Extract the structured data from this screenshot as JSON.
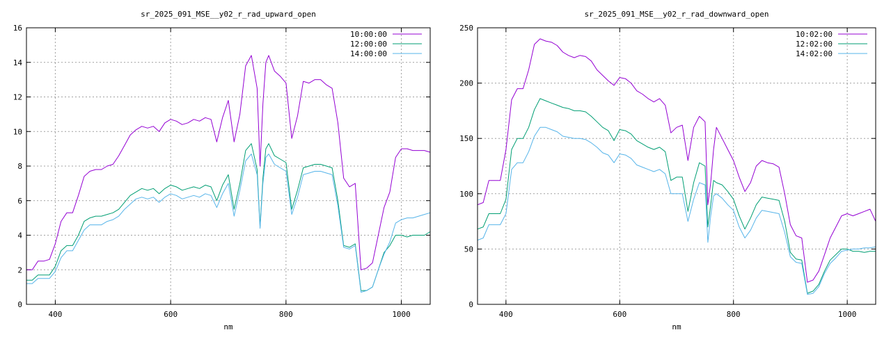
{
  "chart_data": [
    {
      "type": "line",
      "title": "sr_2025_091_MSE__y02_r_rad_upward_open",
      "xlabel": "nm",
      "ylabel": "",
      "xlim": [
        350,
        1050
      ],
      "ylim": [
        0,
        16
      ],
      "xticks": [
        400,
        600,
        800,
        1000
      ],
      "yticks": [
        0,
        2,
        4,
        6,
        8,
        10,
        12,
        14,
        16
      ],
      "grid": true,
      "legend_position": "top-right",
      "x": [
        350,
        360,
        370,
        380,
        390,
        400,
        410,
        420,
        430,
        440,
        450,
        460,
        470,
        480,
        490,
        500,
        510,
        520,
        530,
        540,
        550,
        560,
        570,
        580,
        590,
        600,
        610,
        620,
        630,
        640,
        650,
        660,
        670,
        680,
        690,
        700,
        710,
        720,
        730,
        740,
        750,
        755,
        760,
        765,
        770,
        780,
        790,
        800,
        810,
        820,
        830,
        840,
        850,
        860,
        870,
        880,
        890,
        900,
        910,
        920,
        930,
        940,
        950,
        960,
        970,
        980,
        990,
        1000,
        1010,
        1020,
        1030,
        1040,
        1050
      ],
      "series": [
        {
          "name": "10:00:00",
          "color": "#9400d3",
          "values": [
            2.0,
            2.0,
            2.5,
            2.5,
            2.6,
            3.5,
            4.8,
            5.3,
            5.3,
            6.3,
            7.4,
            7.7,
            7.8,
            7.8,
            8.0,
            8.1,
            8.6,
            9.2,
            9.8,
            10.1,
            10.3,
            10.2,
            10.3,
            10.0,
            10.5,
            10.7,
            10.6,
            10.4,
            10.5,
            10.7,
            10.6,
            10.8,
            10.7,
            9.4,
            10.8,
            11.8,
            9.4,
            11.0,
            13.8,
            14.4,
            12.5,
            8.0,
            11.6,
            14.0,
            14.4,
            13.5,
            13.2,
            12.8,
            9.6,
            10.9,
            12.9,
            12.8,
            13.0,
            13.0,
            12.7,
            12.5,
            10.5,
            7.3,
            6.8,
            7.0,
            2.0,
            2.1,
            2.4,
            4.0,
            5.6,
            6.5,
            8.5,
            9.0,
            9.0,
            8.9,
            8.9,
            8.9,
            8.8
          ]
        },
        {
          "name": "12:00:00",
          "color": "#009e73",
          "values": [
            1.4,
            1.4,
            1.7,
            1.7,
            1.7,
            2.2,
            3.1,
            3.4,
            3.4,
            4.0,
            4.8,
            5.0,
            5.1,
            5.1,
            5.2,
            5.3,
            5.5,
            5.9,
            6.3,
            6.5,
            6.7,
            6.6,
            6.7,
            6.4,
            6.7,
            6.9,
            6.8,
            6.6,
            6.7,
            6.8,
            6.7,
            6.9,
            6.8,
            6.0,
            6.9,
            7.5,
            5.5,
            7.0,
            8.9,
            9.3,
            7.8,
            4.5,
            7.3,
            9.0,
            9.3,
            8.6,
            8.4,
            8.2,
            5.5,
            6.6,
            7.9,
            8.0,
            8.1,
            8.1,
            8.0,
            7.9,
            6.0,
            3.4,
            3.3,
            3.5,
            0.8,
            0.8,
            1.0,
            2.0,
            3.0,
            3.4,
            4.0,
            4.0,
            3.9,
            4.0,
            4.0,
            4.0,
            4.2
          ]
        },
        {
          "name": "14:00:00",
          "color": "#56b4e9",
          "values": [
            1.2,
            1.2,
            1.5,
            1.5,
            1.5,
            1.9,
            2.7,
            3.1,
            3.1,
            3.7,
            4.3,
            4.6,
            4.6,
            4.6,
            4.8,
            4.9,
            5.1,
            5.5,
            5.8,
            6.1,
            6.2,
            6.1,
            6.2,
            5.9,
            6.2,
            6.4,
            6.3,
            6.1,
            6.2,
            6.3,
            6.2,
            6.4,
            6.3,
            5.6,
            6.4,
            7.0,
            5.1,
            6.6,
            8.3,
            8.7,
            7.5,
            4.4,
            7.0,
            8.5,
            8.7,
            8.1,
            7.9,
            7.7,
            5.2,
            6.2,
            7.5,
            7.6,
            7.7,
            7.7,
            7.6,
            7.5,
            5.7,
            3.3,
            3.2,
            3.4,
            0.7,
            0.8,
            1.0,
            2.0,
            2.9,
            3.6,
            4.7,
            4.9,
            5.0,
            5.0,
            5.1,
            5.2,
            5.3
          ]
        }
      ]
    },
    {
      "type": "line",
      "title": "sr_2025_091_MSE__y02_r_rad_downward_open",
      "xlabel": "nm",
      "ylabel": "",
      "xlim": [
        350,
        1050
      ],
      "ylim": [
        0,
        250
      ],
      "xticks": [
        400,
        600,
        800,
        1000
      ],
      "yticks": [
        0,
        50,
        100,
        150,
        200,
        250
      ],
      "grid": true,
      "legend_position": "top-right",
      "x": [
        350,
        360,
        370,
        380,
        390,
        400,
        410,
        420,
        430,
        440,
        450,
        460,
        470,
        480,
        490,
        500,
        510,
        520,
        530,
        540,
        550,
        560,
        570,
        580,
        590,
        600,
        610,
        620,
        630,
        640,
        650,
        660,
        670,
        680,
        690,
        700,
        710,
        720,
        730,
        740,
        750,
        755,
        760,
        765,
        770,
        780,
        790,
        800,
        810,
        820,
        830,
        840,
        850,
        860,
        870,
        880,
        890,
        900,
        910,
        920,
        930,
        940,
        950,
        960,
        970,
        980,
        990,
        1000,
        1010,
        1020,
        1030,
        1040,
        1050
      ],
      "series": [
        {
          "name": "10:02:00",
          "color": "#9400d3",
          "values": [
            90,
            92,
            112,
            112,
            112,
            140,
            185,
            195,
            195,
            212,
            235,
            240,
            238,
            237,
            234,
            228,
            225,
            223,
            225,
            224,
            220,
            212,
            207,
            202,
            198,
            205,
            204,
            200,
            193,
            190,
            186,
            183,
            186,
            180,
            155,
            160,
            162,
            130,
            160,
            170,
            165,
            90,
            110,
            140,
            160,
            150,
            140,
            130,
            115,
            102,
            110,
            125,
            130,
            128,
            127,
            124,
            100,
            72,
            62,
            60,
            20,
            22,
            30,
            45,
            60,
            70,
            80,
            82,
            80,
            82,
            84,
            86,
            75
          ]
        },
        {
          "name": "12:02:00",
          "color": "#009e73",
          "values": [
            68,
            70,
            82,
            82,
            82,
            95,
            140,
            150,
            150,
            160,
            176,
            186,
            184,
            182,
            180,
            178,
            177,
            175,
            175,
            174,
            170,
            165,
            160,
            157,
            148,
            158,
            157,
            154,
            148,
            145,
            142,
            140,
            142,
            138,
            112,
            115,
            115,
            84,
            110,
            128,
            125,
            70,
            90,
            112,
            110,
            108,
            102,
            95,
            80,
            68,
            78,
            90,
            97,
            96,
            95,
            94,
            75,
            47,
            41,
            40,
            10,
            12,
            18,
            30,
            40,
            45,
            50,
            50,
            48,
            48,
            47,
            48,
            48
          ]
        },
        {
          "name": "14:02:00",
          "color": "#56b4e9",
          "values": [
            58,
            60,
            72,
            72,
            72,
            82,
            122,
            128,
            128,
            138,
            152,
            160,
            160,
            158,
            156,
            152,
            151,
            150,
            150,
            149,
            146,
            142,
            137,
            135,
            128,
            136,
            135,
            132,
            126,
            124,
            122,
            120,
            122,
            118,
            100,
            100,
            100,
            75,
            95,
            110,
            108,
            56,
            80,
            98,
            100,
            96,
            90,
            85,
            70,
            60,
            67,
            78,
            85,
            84,
            83,
            82,
            65,
            43,
            38,
            37,
            9,
            10,
            16,
            28,
            37,
            42,
            48,
            49,
            50,
            50,
            51,
            51,
            52
          ]
        }
      ]
    }
  ]
}
